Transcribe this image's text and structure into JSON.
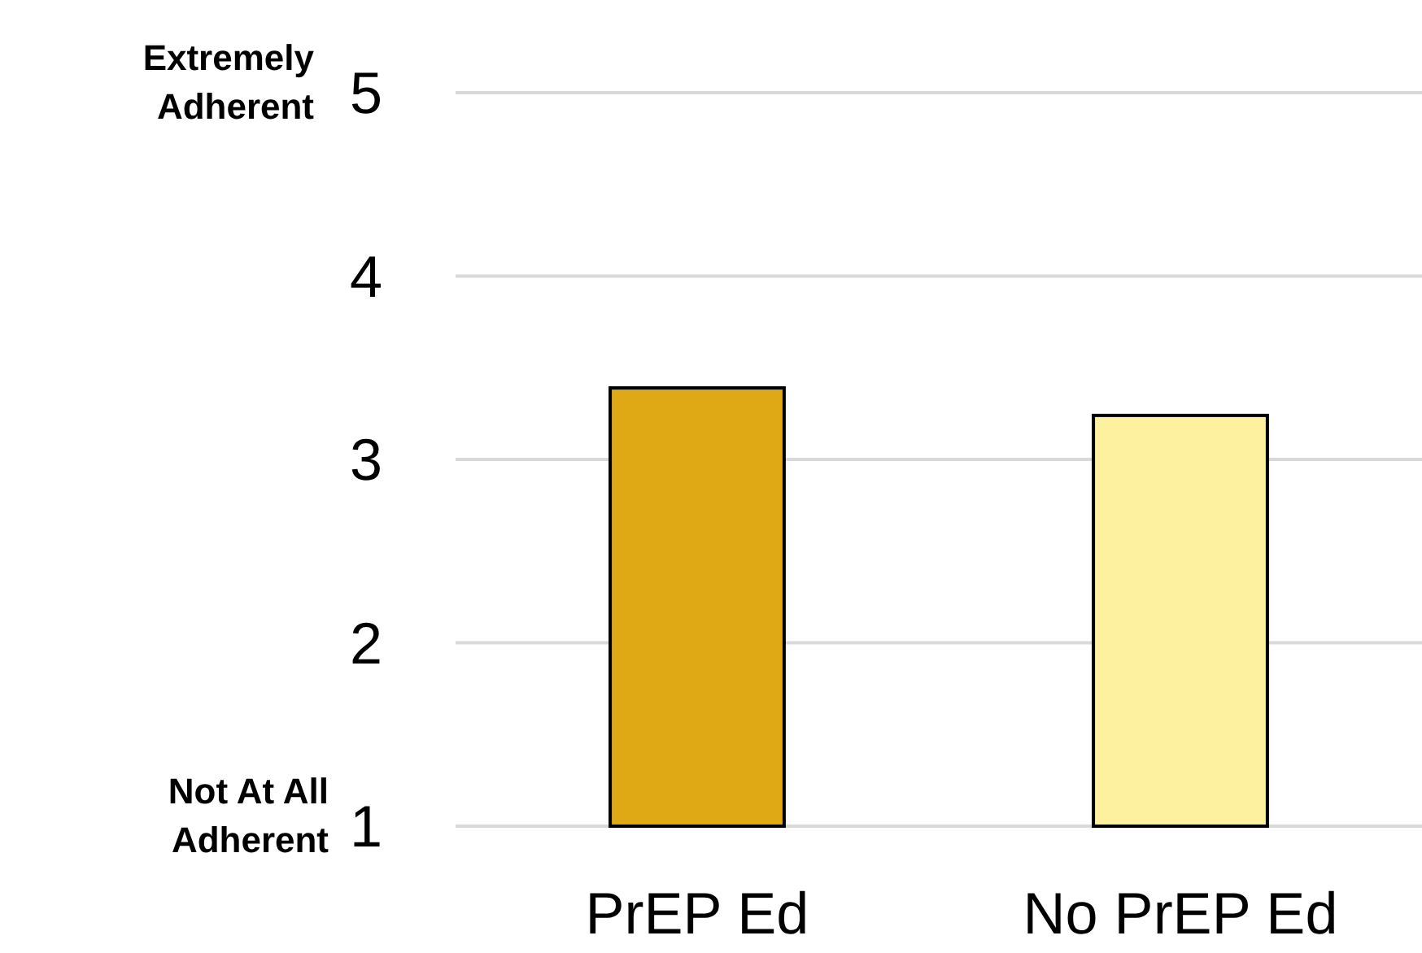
{
  "chart_data": {
    "type": "bar",
    "categories": [
      "PrEP Ed",
      "No PrEP Ed"
    ],
    "values": [
      3.39,
      3.24
    ],
    "colors": [
      "#dfa815",
      "#fdf09f"
    ],
    "ylim": [
      1,
      5
    ],
    "yticks": [
      1,
      2,
      3,
      4,
      5
    ],
    "grid": "y",
    "annotations": [
      "Extremely Adherent",
      "Not At All Adherent"
    ]
  }
}
